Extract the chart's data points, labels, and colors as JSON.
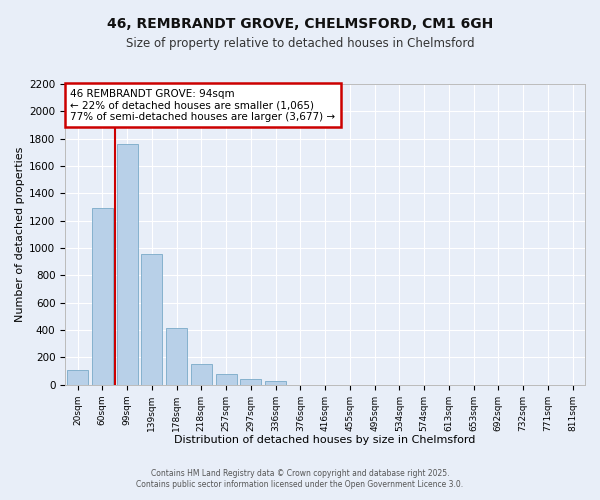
{
  "title_line1": "46, REMBRANDT GROVE, CHELMSFORD, CM1 6GH",
  "title_line2": "Size of property relative to detached houses in Chelmsford",
  "xlabel": "Distribution of detached houses by size in Chelmsford",
  "ylabel": "Number of detached properties",
  "bar_labels": [
    "20sqm",
    "60sqm",
    "99sqm",
    "139sqm",
    "178sqm",
    "218sqm",
    "257sqm",
    "297sqm",
    "336sqm",
    "376sqm",
    "416sqm",
    "455sqm",
    "495sqm",
    "534sqm",
    "574sqm",
    "613sqm",
    "653sqm",
    "692sqm",
    "732sqm",
    "771sqm",
    "811sqm"
  ],
  "bar_values": [
    110,
    1290,
    1760,
    955,
    415,
    155,
    75,
    45,
    25,
    0,
    0,
    0,
    0,
    0,
    0,
    0,
    0,
    0,
    0,
    0,
    0
  ],
  "bar_color": "#b8d0e8",
  "bar_edge_color": "#7aaac8",
  "vline_color": "#cc0000",
  "annotation_text": "46 REMBRANDT GROVE: 94sqm\n← 22% of detached houses are smaller (1,065)\n77% of semi-detached houses are larger (3,677) →",
  "annotation_box_color": "#cc0000",
  "ylim": [
    0,
    2200
  ],
  "yticks": [
    0,
    200,
    400,
    600,
    800,
    1000,
    1200,
    1400,
    1600,
    1800,
    2000,
    2200
  ],
  "bg_color": "#e8eef8",
  "grid_color": "#ffffff",
  "footer_line1": "Contains HM Land Registry data © Crown copyright and database right 2025.",
  "footer_line2": "Contains public sector information licensed under the Open Government Licence 3.0."
}
